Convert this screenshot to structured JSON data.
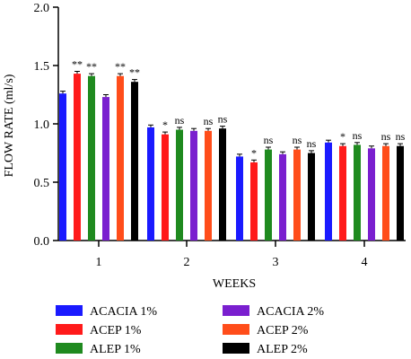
{
  "chart_data": {
    "type": "bar",
    "categories": [
      "1",
      "2",
      "3",
      "4"
    ],
    "xlabel": "WEEKS",
    "ylabel": "FLOW RATE (ml/s)",
    "ylim": [
      0,
      2.0
    ],
    "yticks": [
      "0.0",
      "0.5",
      "1.0",
      "1.5",
      "2.0"
    ],
    "error_bars": true,
    "grid": false,
    "legend_position": "bottom",
    "series": [
      {
        "name": "ACACIA 1%",
        "color": "#1a1aff",
        "values": [
          1.26,
          0.97,
          0.72,
          0.84
        ],
        "errors": [
          0.02,
          0.02,
          0.02,
          0.02
        ],
        "annotations": [
          "",
          "",
          "",
          ""
        ]
      },
      {
        "name": "ACEP 1%",
        "color": "#ff1a1a",
        "values": [
          1.43,
          0.91,
          0.67,
          0.81
        ],
        "errors": [
          0.02,
          0.02,
          0.02,
          0.02
        ],
        "annotations": [
          "**",
          "*",
          "*",
          "*"
        ]
      },
      {
        "name": "ALEP 1%",
        "color": "#1f8a1f",
        "values": [
          1.41,
          0.95,
          0.78,
          0.82
        ],
        "errors": [
          0.02,
          0.02,
          0.02,
          0.02
        ],
        "annotations": [
          "**",
          "ns",
          "ns",
          "ns"
        ]
      },
      {
        "name": "ACACIA 2%",
        "color": "#7a1fcf",
        "values": [
          1.23,
          0.94,
          0.74,
          0.79
        ],
        "errors": [
          0.02,
          0.02,
          0.02,
          0.02
        ],
        "annotations": [
          "",
          "",
          "",
          ""
        ]
      },
      {
        "name": "ACEP 2%",
        "color": "#ff4d1a",
        "values": [
          1.41,
          0.94,
          0.78,
          0.81
        ],
        "errors": [
          0.02,
          0.02,
          0.02,
          0.02
        ],
        "annotations": [
          "**",
          "ns",
          "ns",
          "ns"
        ]
      },
      {
        "name": "ALEP 2%",
        "color": "#000000",
        "values": [
          1.36,
          0.96,
          0.75,
          0.81
        ],
        "errors": [
          0.02,
          0.02,
          0.02,
          0.02
        ],
        "annotations": [
          "**",
          "ns",
          "ns",
          "ns"
        ]
      }
    ]
  }
}
